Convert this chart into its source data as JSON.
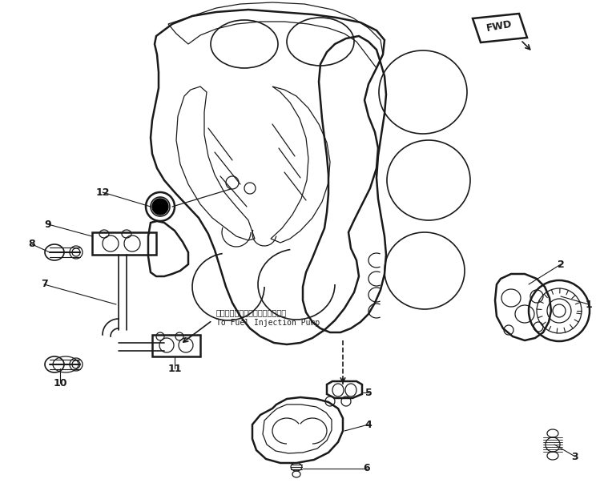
{
  "bg_color": "#ffffff",
  "line_color": "#1a1a1a",
  "fig_width": 7.49,
  "fig_height": 6.13,
  "dpi": 100,
  "annotation_text_jp": "フェルインジェクションポンプへ",
  "annotation_text_en": "To Fuel Injection Pump",
  "fwd_label": "FWD"
}
